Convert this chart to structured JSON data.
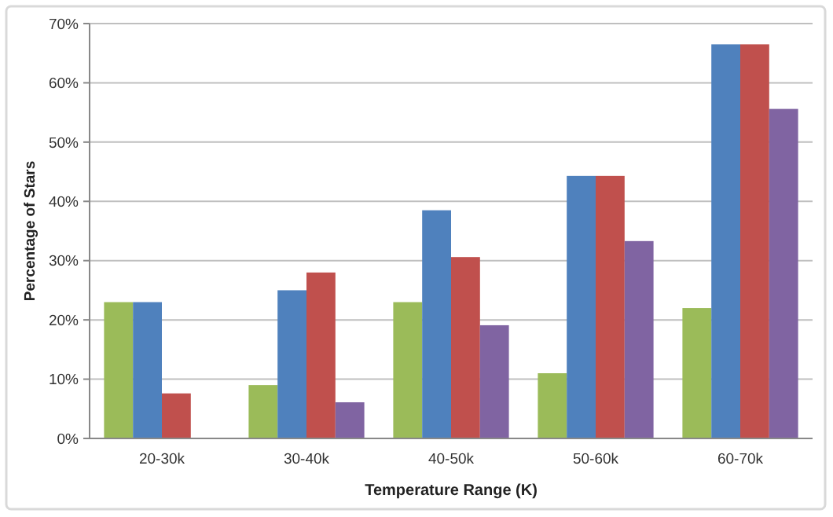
{
  "chart_data": {
    "type": "bar",
    "xlabel": "Temperature Range (K)",
    "ylabel": "Percentage of Stars",
    "categories": [
      "20-30k",
      "30-40k",
      "40-50k",
      "50-60k",
      "60-70k"
    ],
    "series": [
      {
        "color": "#9bbb59",
        "values": [
          23,
          9,
          23,
          11,
          22
        ]
      },
      {
        "color": "#4f81bd",
        "values": [
          23,
          25,
          38.5,
          44.3,
          66.5
        ]
      },
      {
        "color": "#c0504d",
        "values": [
          7.6,
          28,
          30.6,
          44.3,
          66.5
        ]
      },
      {
        "color": "#8064a2",
        "values": [
          0,
          6.1,
          19.1,
          33.3,
          55.6
        ]
      }
    ],
    "ylim": [
      0,
      70
    ],
    "yticks": [
      {
        "value": 0,
        "label": "0%"
      },
      {
        "value": 10,
        "label": "10%"
      },
      {
        "value": 20,
        "label": "20%"
      },
      {
        "value": 30,
        "label": "30%"
      },
      {
        "value": 40,
        "label": "40%"
      },
      {
        "value": 50,
        "label": "50%"
      },
      {
        "value": 60,
        "label": "60%"
      },
      {
        "value": 70,
        "label": "70%"
      }
    ],
    "grid": "y"
  }
}
